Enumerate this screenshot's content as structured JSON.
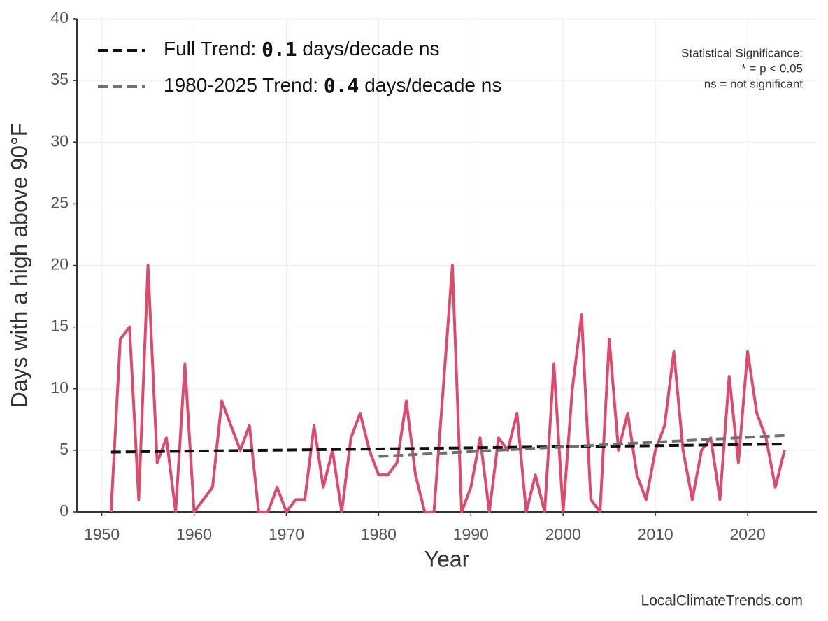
{
  "chart_data": {
    "type": "line",
    "xlabel": "Year",
    "ylabel": "Days with a high above 90°F",
    "xlim": [
      1947.3,
      2027.5
    ],
    "ylim": [
      0,
      40
    ],
    "xticks": [
      1950,
      1960,
      1970,
      1980,
      1990,
      2000,
      2010,
      2020
    ],
    "yticks": [
      0,
      5,
      10,
      15,
      20,
      25,
      30,
      35,
      40
    ],
    "grid": true,
    "x": [
      1951,
      1952,
      1953,
      1954,
      1955,
      1956,
      1957,
      1958,
      1959,
      1960,
      1961,
      1962,
      1963,
      1964,
      1965,
      1966,
      1967,
      1968,
      1969,
      1970,
      1971,
      1972,
      1973,
      1974,
      1975,
      1976,
      1977,
      1978,
      1979,
      1980,
      1981,
      1982,
      1983,
      1984,
      1985,
      1986,
      1987,
      1988,
      1989,
      1990,
      1991,
      1992,
      1993,
      1994,
      1995,
      1996,
      1997,
      1998,
      1999,
      2000,
      2001,
      2002,
      2003,
      2004,
      2005,
      2006,
      2007,
      2008,
      2009,
      2010,
      2011,
      2012,
      2013,
      2014,
      2015,
      2016,
      2017,
      2018,
      2019,
      2020,
      2021,
      2022,
      2023,
      2024
    ],
    "series": [
      {
        "color": "#dc4a6c",
        "values": [
          0,
          14,
          15,
          1,
          20,
          4,
          6,
          0,
          12,
          0,
          1,
          2,
          9,
          7,
          5,
          7,
          0,
          0,
          2,
          0,
          1,
          1,
          7,
          2,
          5,
          0,
          6,
          8,
          5,
          3,
          3,
          4,
          9,
          3,
          0,
          0,
          10,
          20,
          0,
          2,
          6,
          0,
          6,
          5,
          8,
          0,
          3,
          0,
          12,
          0,
          10,
          16,
          1,
          0,
          14,
          5,
          8,
          3,
          1,
          5,
          7,
          13,
          5,
          1,
          5,
          6,
          1,
          11,
          4,
          13,
          8,
          6,
          2,
          5
        ]
      }
    ],
    "trends": [
      {
        "color": "#111111",
        "label": [
          "Full Trend: ",
          "0.1",
          " days/decade ns"
        ],
        "x": [
          1951,
          2024
        ],
        "values": [
          4.85,
          5.5
        ]
      },
      {
        "color": "#707070",
        "label": [
          "1980-2025 Trend: ",
          "0.4",
          " days/decade ns"
        ],
        "x": [
          1980,
          2024
        ],
        "values": [
          4.5,
          6.2
        ]
      }
    ],
    "annotation": [
      "Statistical Significance:",
      "* = p < 0.05",
      "ns = not significant"
    ],
    "watermark": "LocalClimateTrends.com"
  }
}
